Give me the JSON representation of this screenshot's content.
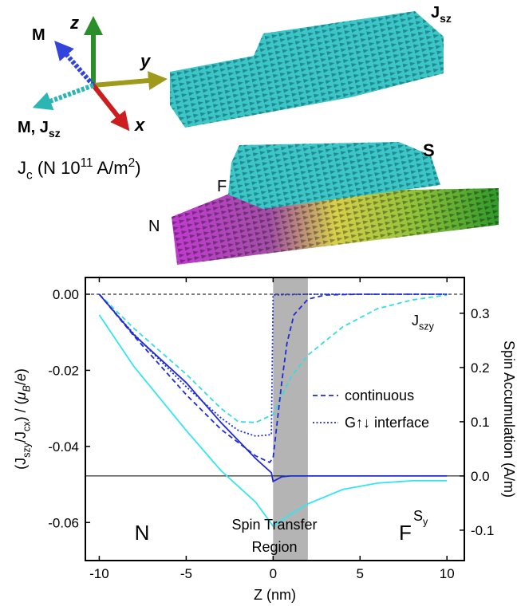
{
  "illustration": {
    "axis_labels": {
      "z": "z",
      "y": "y",
      "x": "x"
    },
    "m_label": "M",
    "m_jsz_label": [
      {
        "text": "M"
      },
      {
        "text": ", J"
      },
      {
        "text": "sz",
        "sub": true
      }
    ],
    "top_block_label": [
      {
        "text": "J"
      },
      {
        "text": "sz",
        "sub": true
      }
    ],
    "current_label": [
      {
        "text": "J"
      },
      {
        "text": "c",
        "sub": true
      },
      {
        "text": " (N 10"
      },
      {
        "text": "11",
        "sup": true
      },
      {
        "text": " A/m"
      },
      {
        "text": "2",
        "sup": true
      },
      {
        "text": ")"
      }
    ],
    "bottom_block_labels": {
      "s": "S",
      "f": "F",
      "n": "N"
    }
  },
  "chart_data": {
    "type": "line",
    "xlabel": [
      {
        "text": "Z (nm)"
      }
    ],
    "ylabel": [
      {
        "text": "(J"
      },
      {
        "text": "szy",
        "sub": true
      },
      {
        "text": "/J"
      },
      {
        "text": "cx",
        "sub": true
      },
      {
        "text": ") / ("
      },
      {
        "text": "μ",
        "italic": true
      },
      {
        "text": "B",
        "sub": true,
        "italic": true
      },
      {
        "text": "/"
      },
      {
        "text": "e",
        "italic": true
      },
      {
        "text": ")"
      }
    ],
    "y2label": [
      {
        "text": "Spin Accumulation (A/m)"
      }
    ],
    "xlim": [
      -10.8,
      11
    ],
    "xticks": [
      -10,
      -5,
      0,
      5,
      10
    ],
    "ylim": [
      -0.07,
      0.0044
    ],
    "yticks": [
      {
        "value": 0,
        "label": "0.00"
      },
      {
        "value": -0.02,
        "label": "-0.02"
      },
      {
        "value": -0.04,
        "label": "-0.04"
      },
      {
        "value": -0.06,
        "label": "-0.06"
      }
    ],
    "y2lim": [
      -0.156,
      0.366
    ],
    "y2ticks": [
      0.3,
      0.2,
      0.1,
      {
        "value": 0,
        "label": "0.0"
      },
      -0.1
    ],
    "shaded_region": {
      "x": [
        0,
        2
      ],
      "color": "#b4b4b4"
    },
    "legend": "center right",
    "series": [
      {
        "color": "#33dde0",
        "dash": "dashed",
        "x": [
          -10,
          -8,
          -5,
          -3,
          -2,
          -1,
          0,
          1,
          2,
          4,
          6,
          8,
          10
        ],
        "values": [
          0,
          -0.009,
          -0.021,
          -0.03,
          -0.0335,
          -0.0337,
          -0.0316,
          -0.022,
          -0.016,
          -0.0086,
          -0.0038,
          -0.0015,
          -0.0002
        ]
      },
      {
        "name": "continuous",
        "color": "#1f2bd8",
        "dash": "dashed",
        "x": [
          -10,
          -8,
          -5,
          -3,
          -2,
          -1,
          -0.2,
          0,
          0.3,
          0.5,
          0.8,
          1.2,
          2,
          3,
          5,
          10
        ],
        "values": [
          0,
          -0.011,
          -0.0264,
          -0.0355,
          -0.039,
          -0.0425,
          -0.0442,
          -0.043,
          -0.031,
          -0.023,
          -0.0128,
          -0.0054,
          -0.0013,
          -0.0002,
          0,
          0
        ]
      },
      {
        "name": "G↑↓ interface",
        "color": "#1f2bd8",
        "dash": "dotted",
        "x": [
          -10,
          -8,
          -5,
          -3,
          -2,
          -1,
          -0.1,
          0,
          2,
          5,
          10
        ],
        "values": [
          0,
          -0.0105,
          -0.0243,
          -0.0325,
          -0.0358,
          -0.0373,
          -0.0369,
          -0.0002,
          0,
          0,
          0
        ]
      },
      {
        "color": "#1f2bd8",
        "dash": "solid",
        "axis": "y2",
        "x": [
          -10,
          -8,
          -5,
          -3,
          -1,
          -0.1,
          0,
          0.5,
          1,
          5,
          10
        ],
        "values": [
          0.335,
          0.26,
          0.172,
          0.0985,
          0.032,
          0.006,
          -0.01,
          -0.0015,
          0,
          0,
          0
        ]
      },
      {
        "color": "#33e5f0",
        "dash": "solid",
        "axis": "y2",
        "x": [
          -10,
          -8,
          -5,
          -3,
          -1,
          0,
          1,
          2,
          4,
          6,
          8,
          10
        ],
        "values": [
          0.297,
          0.2015,
          0.084,
          0.01,
          -0.0485,
          -0.0926,
          -0.0706,
          -0.0515,
          -0.025,
          -0.0132,
          -0.0088,
          -0.0088
        ]
      }
    ],
    "annotations": [
      [
        {
          "text": "N"
        }
      ],
      [
        {
          "text": "F"
        }
      ],
      [
        {
          "text": "Spin Transfer"
        }
      ],
      [
        {
          "text": "Region"
        }
      ],
      [
        {
          "text": "J"
        },
        {
          "text": "szy",
          "sub": true
        }
      ],
      [
        {
          "text": "S"
        },
        {
          "text": "y",
          "sub": true
        }
      ]
    ]
  }
}
